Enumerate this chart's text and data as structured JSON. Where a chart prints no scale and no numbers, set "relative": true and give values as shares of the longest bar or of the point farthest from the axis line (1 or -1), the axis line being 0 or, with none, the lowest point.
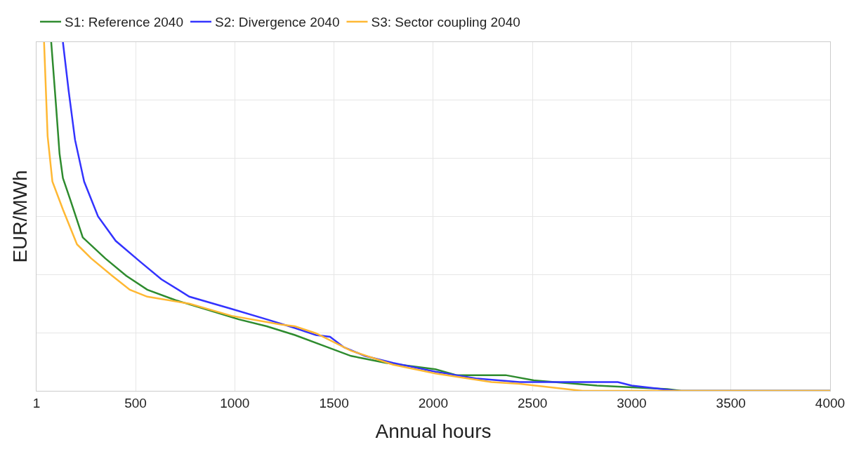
{
  "chart_data": {
    "type": "line",
    "relative": true,
    "xlabel": "Annual hours",
    "ylabel": "EUR/MWh",
    "xlim": [
      1,
      4000
    ],
    "xticks": [
      1,
      500,
      1000,
      1500,
      2000,
      2500,
      3000,
      3500,
      4000
    ],
    "grid": true,
    "legend": "top left",
    "marker": "none",
    "line_style": "solid",
    "series": [
      {
        "name": "S1: Reference 2040",
        "color": "#2e8b2e",
        "x": [
          75,
          99,
          117,
          134,
          170,
          234,
          347,
          453,
          559,
          701,
          878,
          1020,
          1161,
          1303,
          1444,
          1586,
          1763,
          2011,
          2117,
          2365,
          2506,
          2825,
          3180,
          3250,
          4000
        ],
        "values": [
          1,
          0.82,
          0.68,
          0.61,
          0.55,
          0.44,
          0.38,
          0.33,
          0.29,
          0.26,
          0.23,
          0.205,
          0.185,
          0.16,
          0.13,
          0.1,
          0.08,
          0.062,
          0.045,
          0.045,
          0.03,
          0.015,
          0.005,
          0,
          0
        ]
      },
      {
        "name": "S2: Divergence 2040",
        "color": "#3333ff",
        "x": [
          134,
          163,
          195,
          241,
          311,
          400,
          524,
          630,
          771,
          984,
          1161,
          1303,
          1409,
          1480,
          1550,
          1656,
          1798,
          2011,
          2222,
          2435,
          2930,
          3000,
          3230,
          4000
        ],
        "values": [
          1,
          0.86,
          0.72,
          0.6,
          0.5,
          0.43,
          0.37,
          0.32,
          0.27,
          0.235,
          0.205,
          0.18,
          0.16,
          0.155,
          0.125,
          0.1,
          0.08,
          0.055,
          0.035,
          0.025,
          0.025,
          0.015,
          0,
          0
        ]
      },
      {
        "name": "S3: Sector coupling 2040",
        "color": "#ffb833",
        "x": [
          39,
          57,
          81,
          134,
          205,
          276,
          382,
          471,
          559,
          771,
          984,
          1232,
          1303,
          1409,
          1586,
          1798,
          2011,
          2293,
          2435,
          2718,
          2753,
          4000
        ],
        "values": [
          1,
          0.73,
          0.6,
          0.52,
          0.42,
          0.38,
          0.33,
          0.29,
          0.27,
          0.25,
          0.215,
          0.19,
          0.185,
          0.165,
          0.115,
          0.075,
          0.05,
          0.025,
          0.02,
          0.002,
          0,
          0
        ]
      }
    ]
  }
}
